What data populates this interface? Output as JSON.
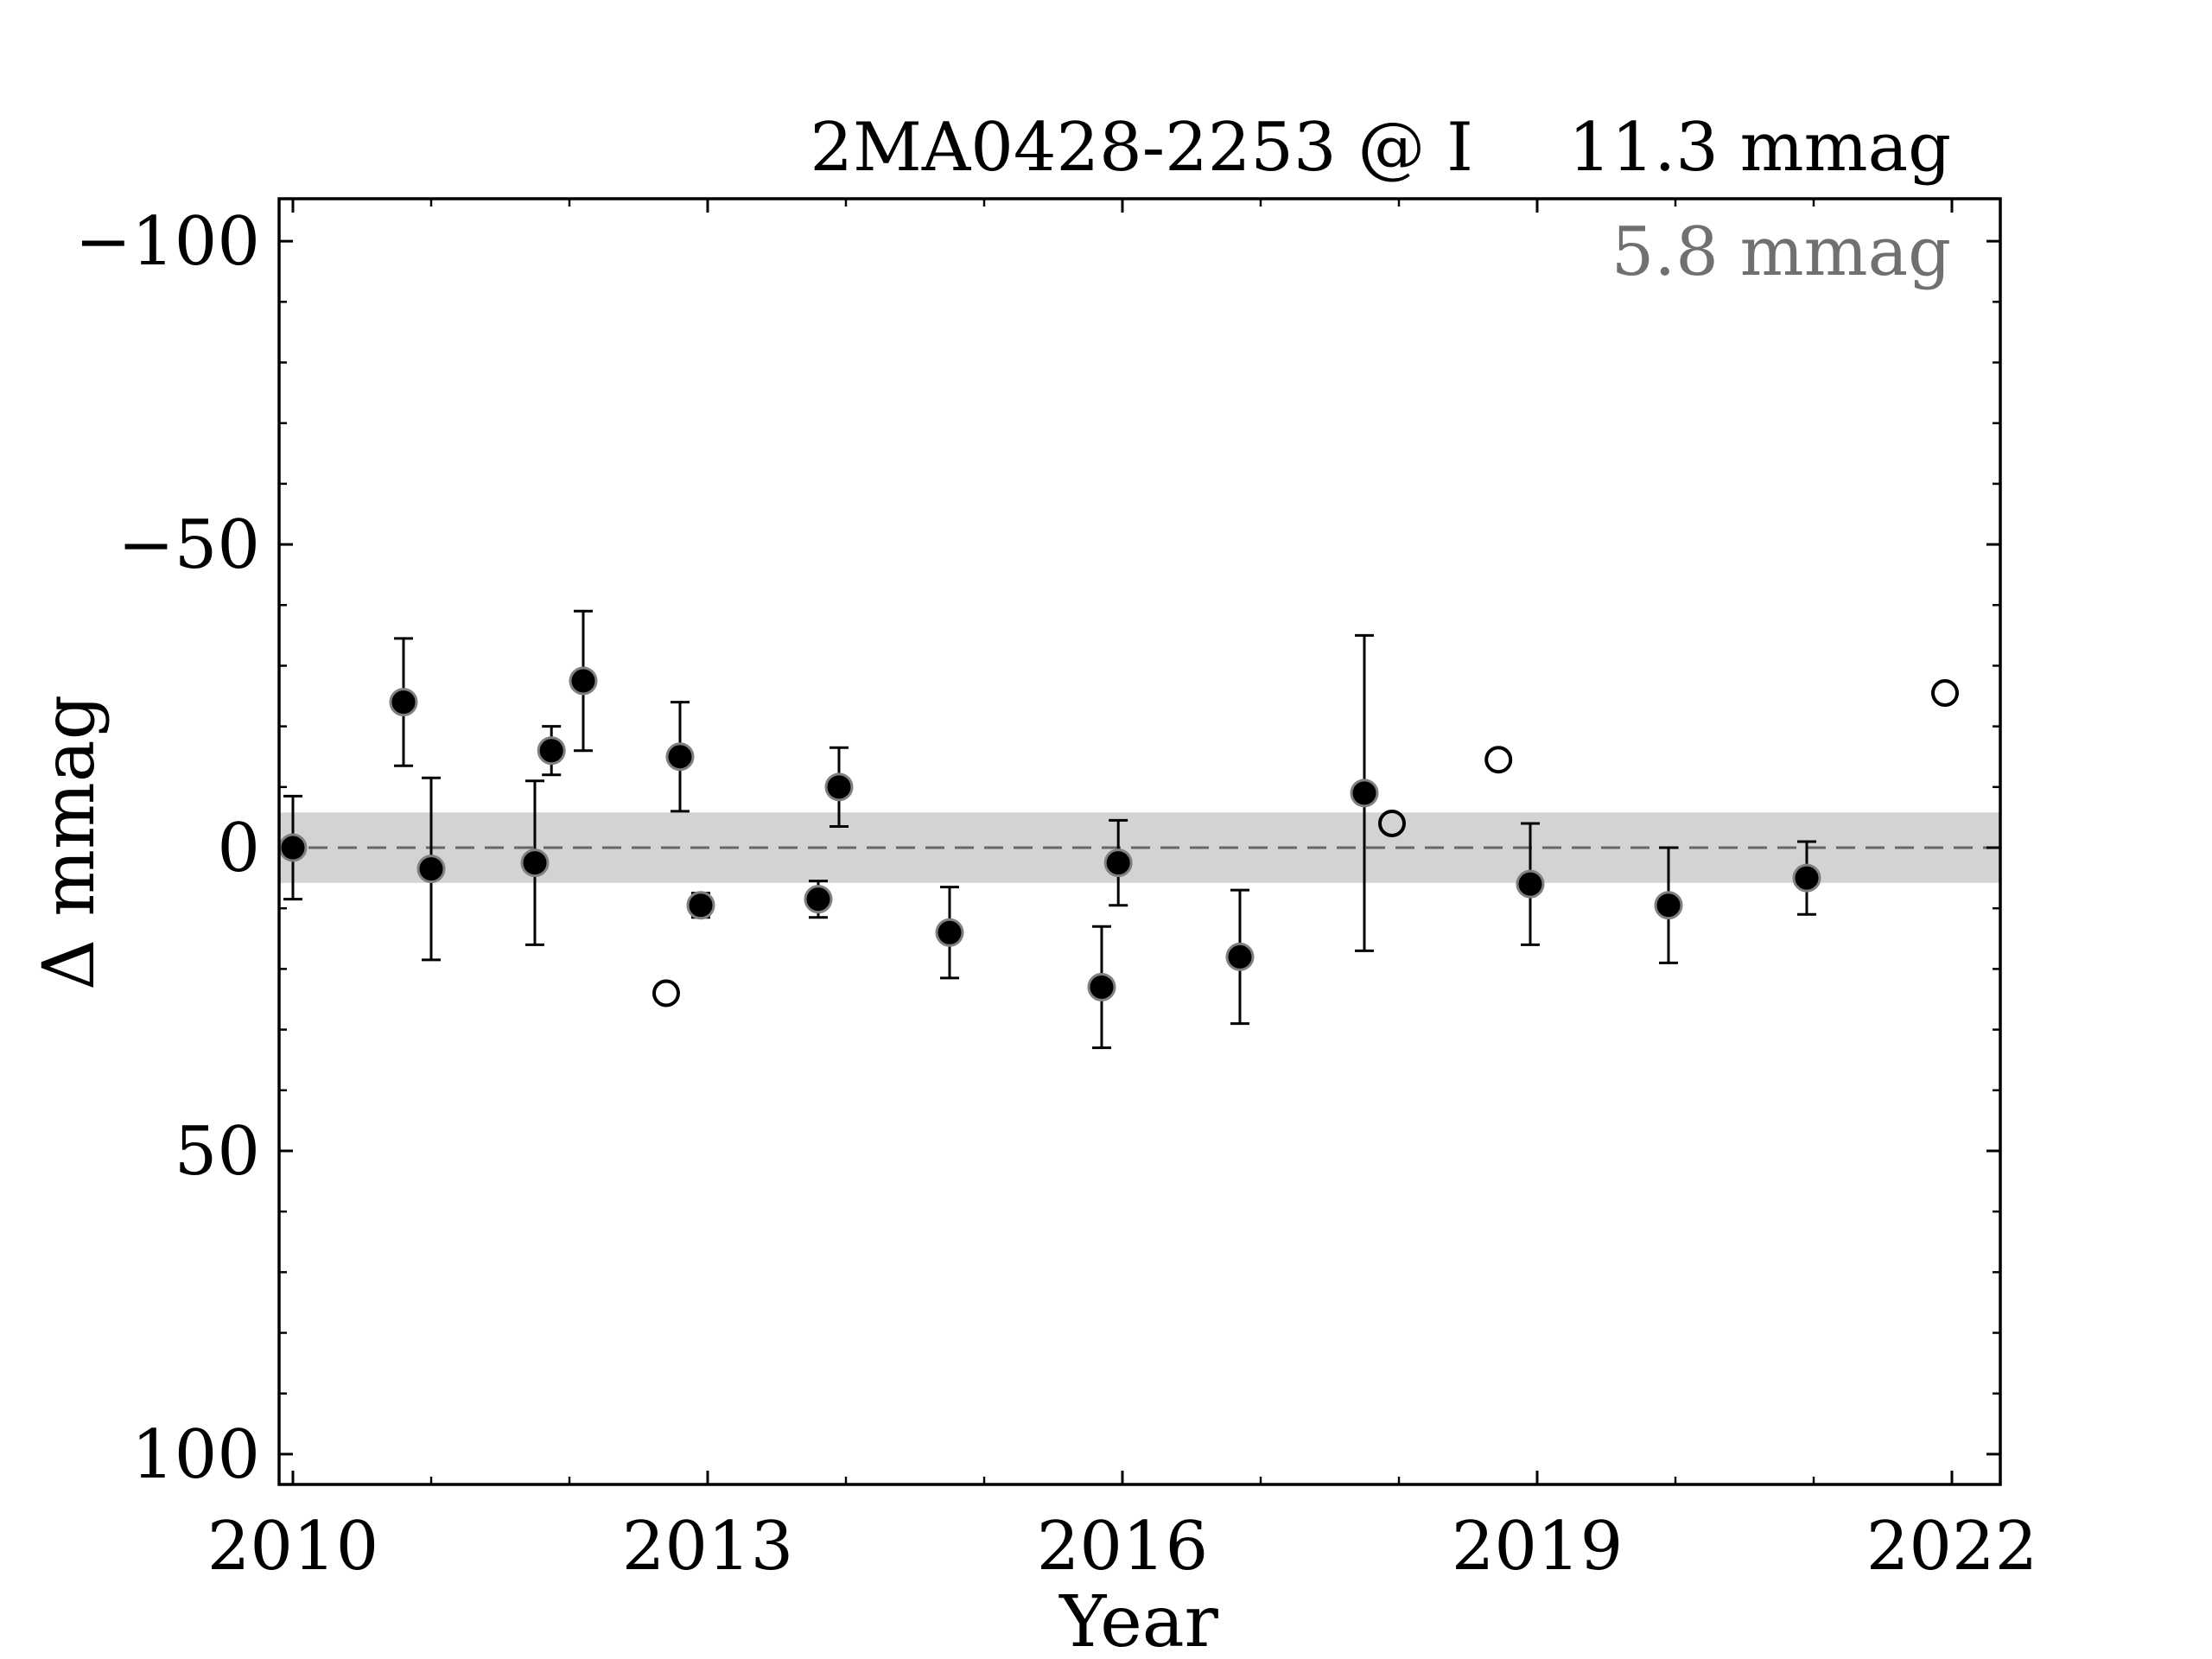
{
  "chart_data": {
    "type": "scatter",
    "title": "2MA0428-2253 @ I",
    "annotations": {
      "rms_main": "11.3 mmag",
      "rms_secondary": "5.8 mmag",
      "rms_secondary_color": "#707070"
    },
    "xlabel": "Year",
    "ylabel": "Δ  mmag",
    "xlim": [
      2009.9,
      2022.35
    ],
    "ylim": [
      105,
      -107
    ],
    "y_inverted": true,
    "x_ticks": [
      2010,
      2013,
      2016,
      2019,
      2022
    ],
    "x_tick_labels": [
      "2010",
      "2013",
      "2016",
      "2019",
      "2022"
    ],
    "y_ticks": [
      -100,
      -50,
      0,
      50,
      100
    ],
    "y_tick_labels": [
      "−100",
      "−50",
      "0",
      "50",
      "100"
    ],
    "grid": false,
    "reference_line": {
      "y": 0,
      "style": "dashed",
      "color": "#666666"
    },
    "band": {
      "y_low": -5.8,
      "y_high": 5.8,
      "color": "#d3d3d3"
    },
    "series": [
      {
        "marker": "filled-circle",
        "color": "#000000",
        "points": [
          {
            "x": 2010.0,
            "y": 0.0,
            "err": 8.5
          },
          {
            "x": 2010.8,
            "y": -24.0,
            "err": 10.5
          },
          {
            "x": 2011.0,
            "y": 3.5,
            "err": 15.0
          },
          {
            "x": 2011.75,
            "y": 2.5,
            "err": 13.5
          },
          {
            "x": 2011.87,
            "y": -16.0,
            "err": 4.0
          },
          {
            "x": 2012.1,
            "y": -27.5,
            "err": 11.5
          },
          {
            "x": 2012.8,
            "y": -15.0,
            "err": 9.0
          },
          {
            "x": 2012.95,
            "y": 9.5,
            "err": 2.0
          },
          {
            "x": 2013.8,
            "y": 8.5,
            "err": 3.0
          },
          {
            "x": 2013.95,
            "y": -10.0,
            "err": 6.5
          },
          {
            "x": 2014.75,
            "y": 14.0,
            "err": 7.5
          },
          {
            "x": 2015.85,
            "y": 23.0,
            "err": 10.0
          },
          {
            "x": 2015.97,
            "y": 2.5,
            "err": 7.0
          },
          {
            "x": 2016.85,
            "y": 18.0,
            "err": 11.0
          },
          {
            "x": 2017.75,
            "y": -9.0,
            "err": 26.0
          },
          {
            "x": 2018.95,
            "y": 6.0,
            "err": 10.0
          },
          {
            "x": 2019.95,
            "y": 9.5,
            "err": 9.5
          },
          {
            "x": 2020.95,
            "y": 5.0,
            "err": 6.0
          }
        ]
      },
      {
        "marker": "open-circle",
        "color": "#000000",
        "points": [
          {
            "x": 2012.7,
            "y": 24.0
          },
          {
            "x": 2017.95,
            "y": -4.0
          },
          {
            "x": 2018.72,
            "y": -14.5
          },
          {
            "x": 2021.95,
            "y": -25.5
          }
        ]
      }
    ]
  }
}
